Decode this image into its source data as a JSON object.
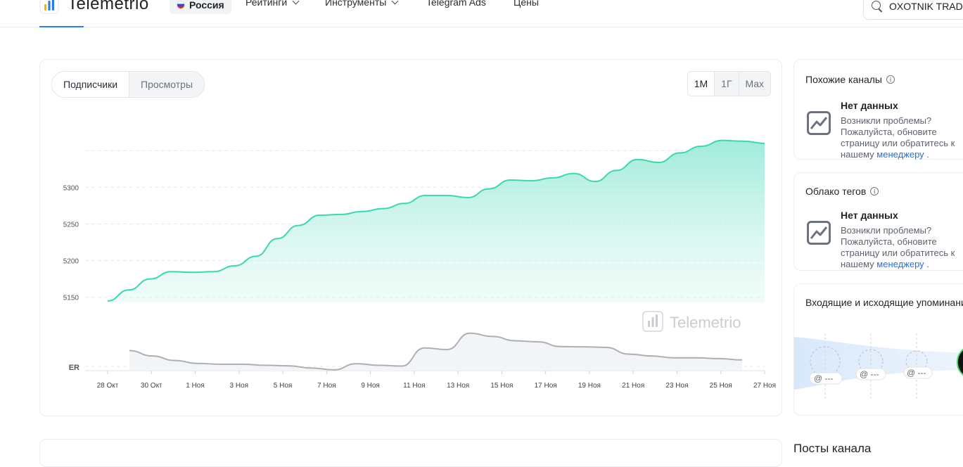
{
  "header": {
    "logo_text": "Telemetrio",
    "country": "Россия",
    "nav": [
      {
        "label": "Рейтинги",
        "dropdown": true
      },
      {
        "label": "Инструменты",
        "dropdown": true
      },
      {
        "label": "Telegram Ads",
        "dropdown": false
      },
      {
        "label": "Цены",
        "dropdown": false
      }
    ],
    "search_value": "OXOTNIK TRAD"
  },
  "tabs": {
    "subscribers": "Подписчики",
    "views": "Просмотры"
  },
  "ranges": [
    "1М",
    "1Г",
    "Max"
  ],
  "watermark": "Telemetrio",
  "chart_data": {
    "type": "area",
    "y_ticks": [
      5150,
      5200,
      5250,
      5300
    ],
    "ylim": [
      5143,
      5380
    ],
    "er_label": "ER",
    "x_labels": [
      "28 Окт",
      "30 Окт",
      "1 Ноя",
      "3 Ноя",
      "5 Ноя",
      "7 Ноя",
      "9 Ноя",
      "11 Ноя",
      "13 Ноя",
      "15 Ноя",
      "17 Ноя",
      "19 Ноя",
      "21 Ноя",
      "23 Ноя",
      "25 Ноя",
      "27 Ноя"
    ],
    "series": [
      {
        "values": [
          5145,
          5160,
          5175,
          5185,
          5184,
          5185,
          5193,
          5206,
          5230,
          5248,
          5262,
          5263,
          5267,
          5271,
          5278,
          5289,
          5289,
          5286,
          5298,
          5310,
          5309,
          5313,
          5319,
          5308,
          5323,
          5338,
          5334,
          5347,
          5356,
          5364,
          5363,
          5360
        ]
      },
      {
        "values": [
          null,
          null,
          0.75,
          0.55,
          0.38,
          0.27,
          0.24,
          0.24,
          0.2,
          0.18,
          0.1,
          0.03,
          0.26,
          0.2,
          0.17,
          0.85,
          0.79,
          1.4,
          1.28,
          1.12,
          1.08,
          0.9,
          0.89,
          0.87,
          0.62,
          0.55,
          0.48,
          0.48,
          0.45,
          0.4
        ]
      }
    ]
  },
  "similar": {
    "title": "Похожие каналы",
    "nodata": "Нет данных",
    "text": "Возникли проблемы? Пожалуйста, обновите страницу или обратитесь к нашему",
    "link": "менеджеру",
    "dot": "."
  },
  "tags": {
    "title": "Облако тегов",
    "nodata": "Нет данных",
    "text": "Возникли проблемы? Пожалуйста, обновите страницу или обратитесь к нашему",
    "link": "менеджеру",
    "dot": "."
  },
  "mentions": {
    "title": "Входящие и исходящие упоминания",
    "placeholders": [
      "@ ---",
      "@ ---",
      "@ ---"
    ]
  },
  "posts": {
    "title": "Посты канала"
  }
}
